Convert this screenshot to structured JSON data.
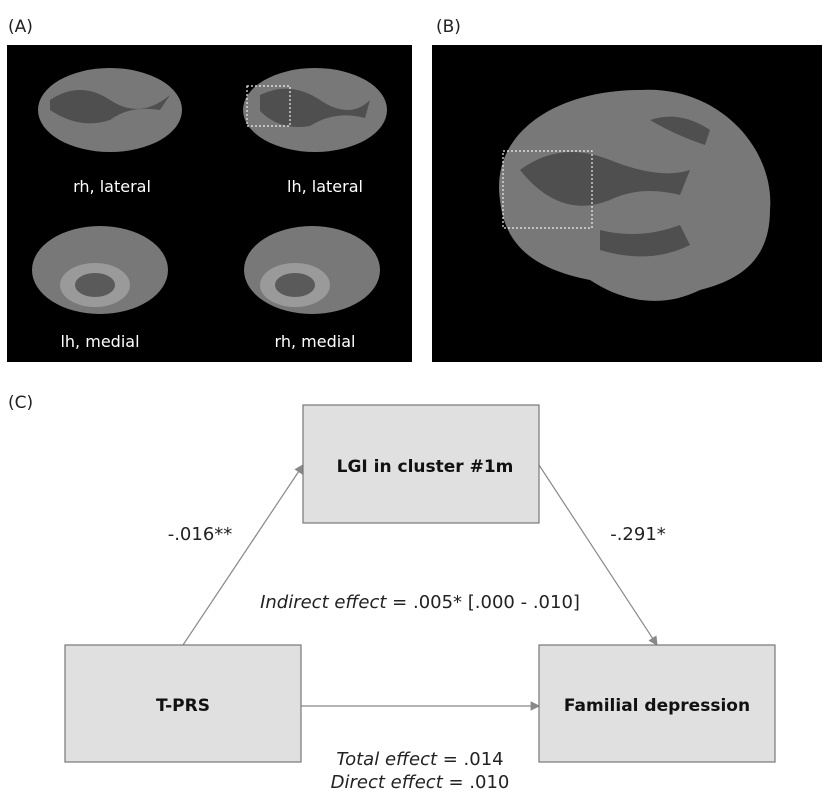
{
  "panels": {
    "a": "(A)",
    "b": "(B)",
    "c": "(C)"
  },
  "brain_labels": [
    "rh, lateral",
    "lh, lateral",
    "lh, medial",
    "rh, medial"
  ],
  "nodes": [
    {
      "label": "LGI in cluster #1m"
    },
    {
      "label": "T-PRS"
    },
    {
      "label": "Familial depression"
    }
  ],
  "edges": [
    {
      "label": "-.016**"
    },
    {
      "label": "-.291*"
    }
  ],
  "effects": {
    "indirect": {
      "name": "Indirect effect",
      "value": " = .005* [.000 - .010]"
    },
    "total": {
      "name": "Total effect",
      "value": " = .014"
    },
    "direct": {
      "name": "Direct effect",
      "value": " = .010"
    }
  }
}
